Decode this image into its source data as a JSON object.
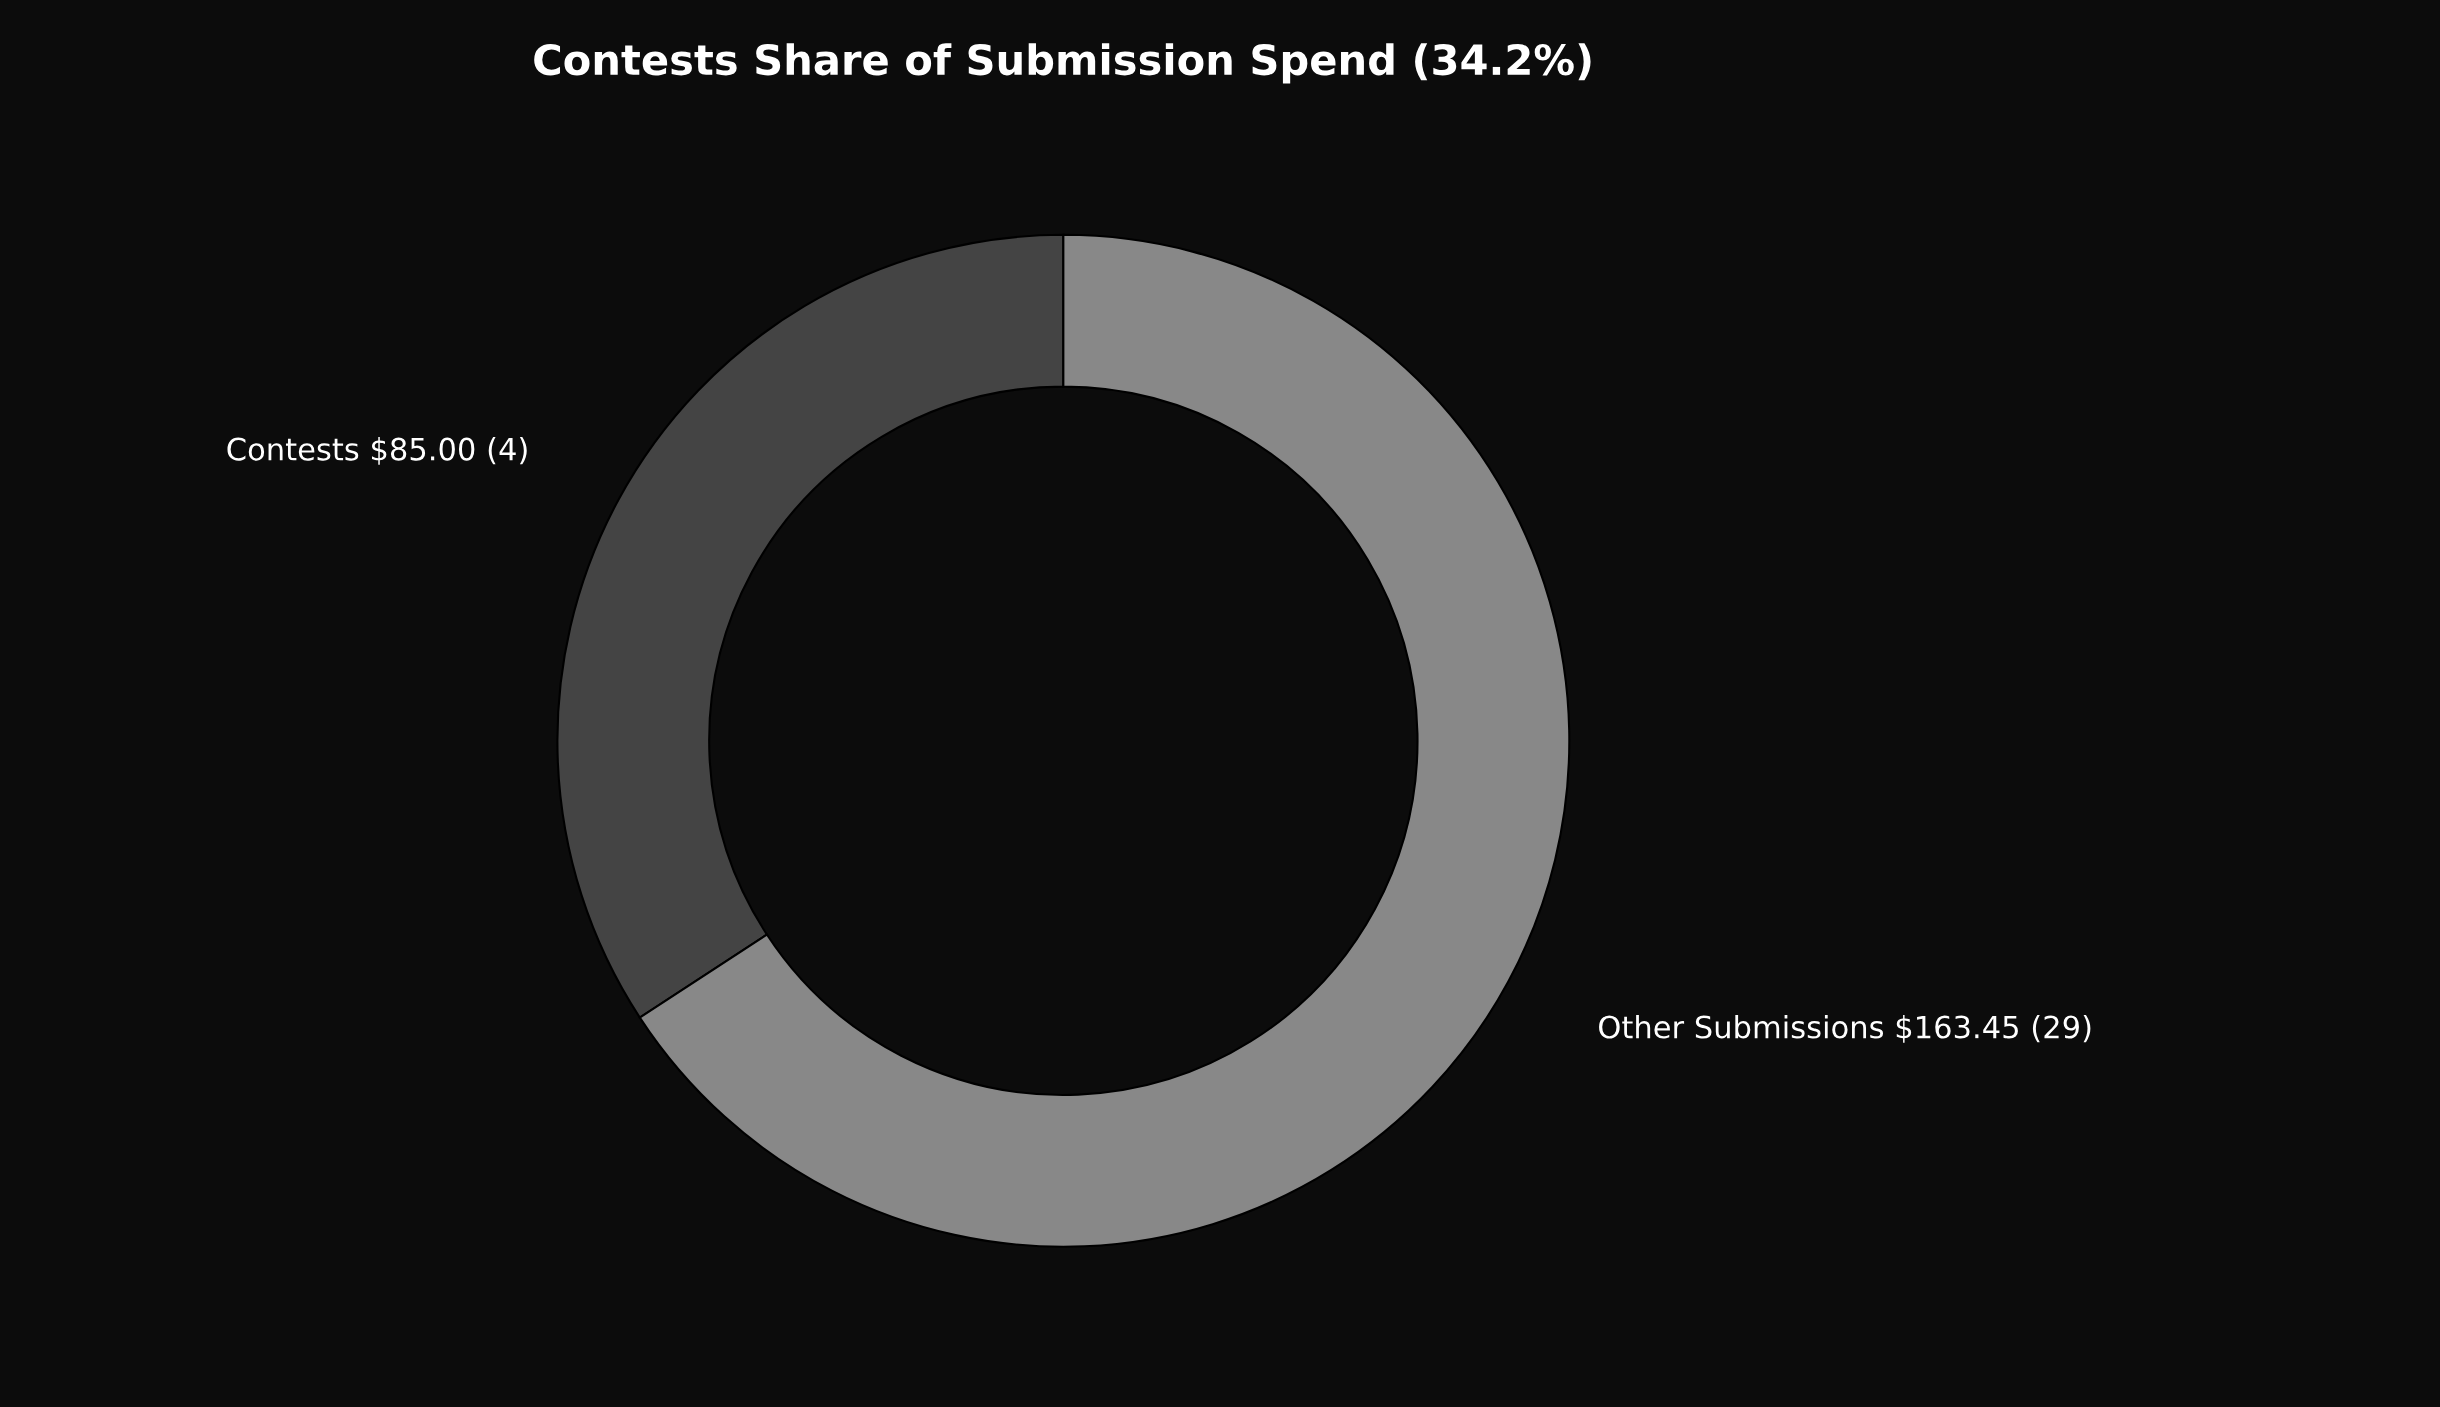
{
  "chart_data": {
    "type": "donut",
    "title": "Contests Share of Submission Spend (34.2%)",
    "categories": [
      "Contests $85.00 (4)",
      "Other Submissions $163.45 (29)"
    ],
    "values": [
      85.0,
      163.45
    ],
    "colors": [
      "#444444",
      "#888888"
    ],
    "legend": false
  }
}
